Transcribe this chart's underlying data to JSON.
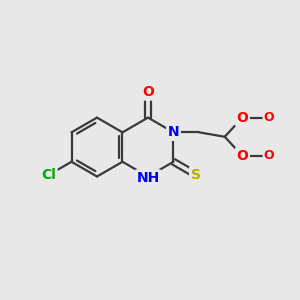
{
  "bg_color": "#e8e8e8",
  "bond_color": "#3a3a3a",
  "bond_width": 1.6,
  "atom_colors": {
    "O": "#ff0000",
    "N": "#0000ee",
    "S": "#bbaa00",
    "Cl": "#00aa00",
    "C": "#3a3a3a"
  },
  "font_size": 10
}
